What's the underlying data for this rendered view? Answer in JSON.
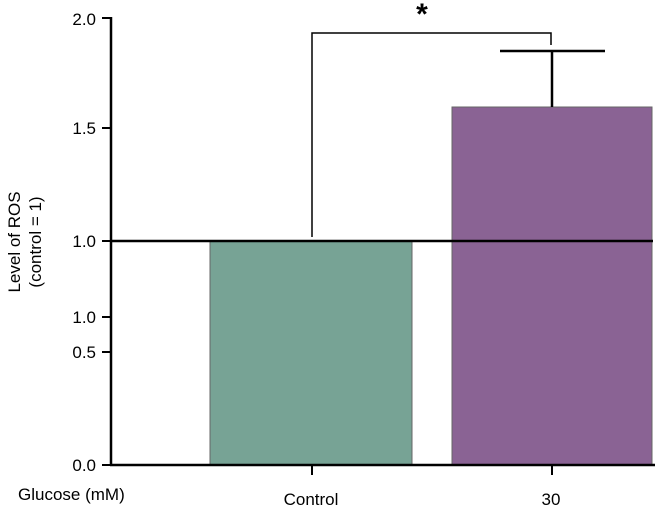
{
  "chart_data": {
    "type": "bar",
    "categories": [
      "Control",
      "30"
    ],
    "values": [
      1.0,
      1.6
    ],
    "error": [
      0.0,
      0.25
    ],
    "ylabel_line1": "Level of ROS",
    "ylabel_line2": "(control = 1)",
    "xlabel": "Glucose (mM)",
    "yticks": [
      "0.0",
      "0.5",
      "1.0",
      "1.0",
      "1.5",
      "2.0"
    ],
    "ylim": [
      0,
      2.0
    ],
    "reference_line": 1.0,
    "significance_label": "*",
    "grid": false,
    "legend": "none",
    "colors": {
      "Control": "#77a395",
      "30": "#8a6394"
    }
  }
}
